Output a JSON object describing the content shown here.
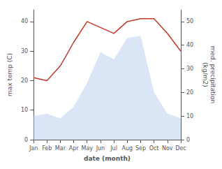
{
  "chart_data": {
    "type": "line",
    "categories": [
      "Jan",
      "Feb",
      "Mar",
      "Apr",
      "May",
      "Jun",
      "Jul",
      "Aug",
      "Sep",
      "Oct",
      "Nov",
      "Dec"
    ],
    "series": [
      {
        "type": "area",
        "axis": "y2",
        "color": "#aec6e8",
        "values": [
          10,
          11,
          9,
          14,
          24,
          37,
          34,
          43,
          44,
          20,
          11,
          9
        ]
      },
      {
        "type": "line",
        "axis": "y",
        "color": "#c0392b",
        "values": [
          21,
          20,
          25,
          33,
          40,
          38,
          36,
          40,
          41,
          41,
          36,
          30
        ]
      }
    ],
    "xlabel": "date (month)",
    "ylabel": "max temp (C)",
    "y2label": "med. precipitation\n(kg/m2)",
    "ylim": [
      0,
      44
    ],
    "yticks": [
      0,
      10,
      20,
      30,
      40
    ],
    "y2lim": [
      0,
      55
    ],
    "y2ticks": [
      0,
      10,
      20,
      30,
      40,
      50
    ],
    "grid": false
  }
}
